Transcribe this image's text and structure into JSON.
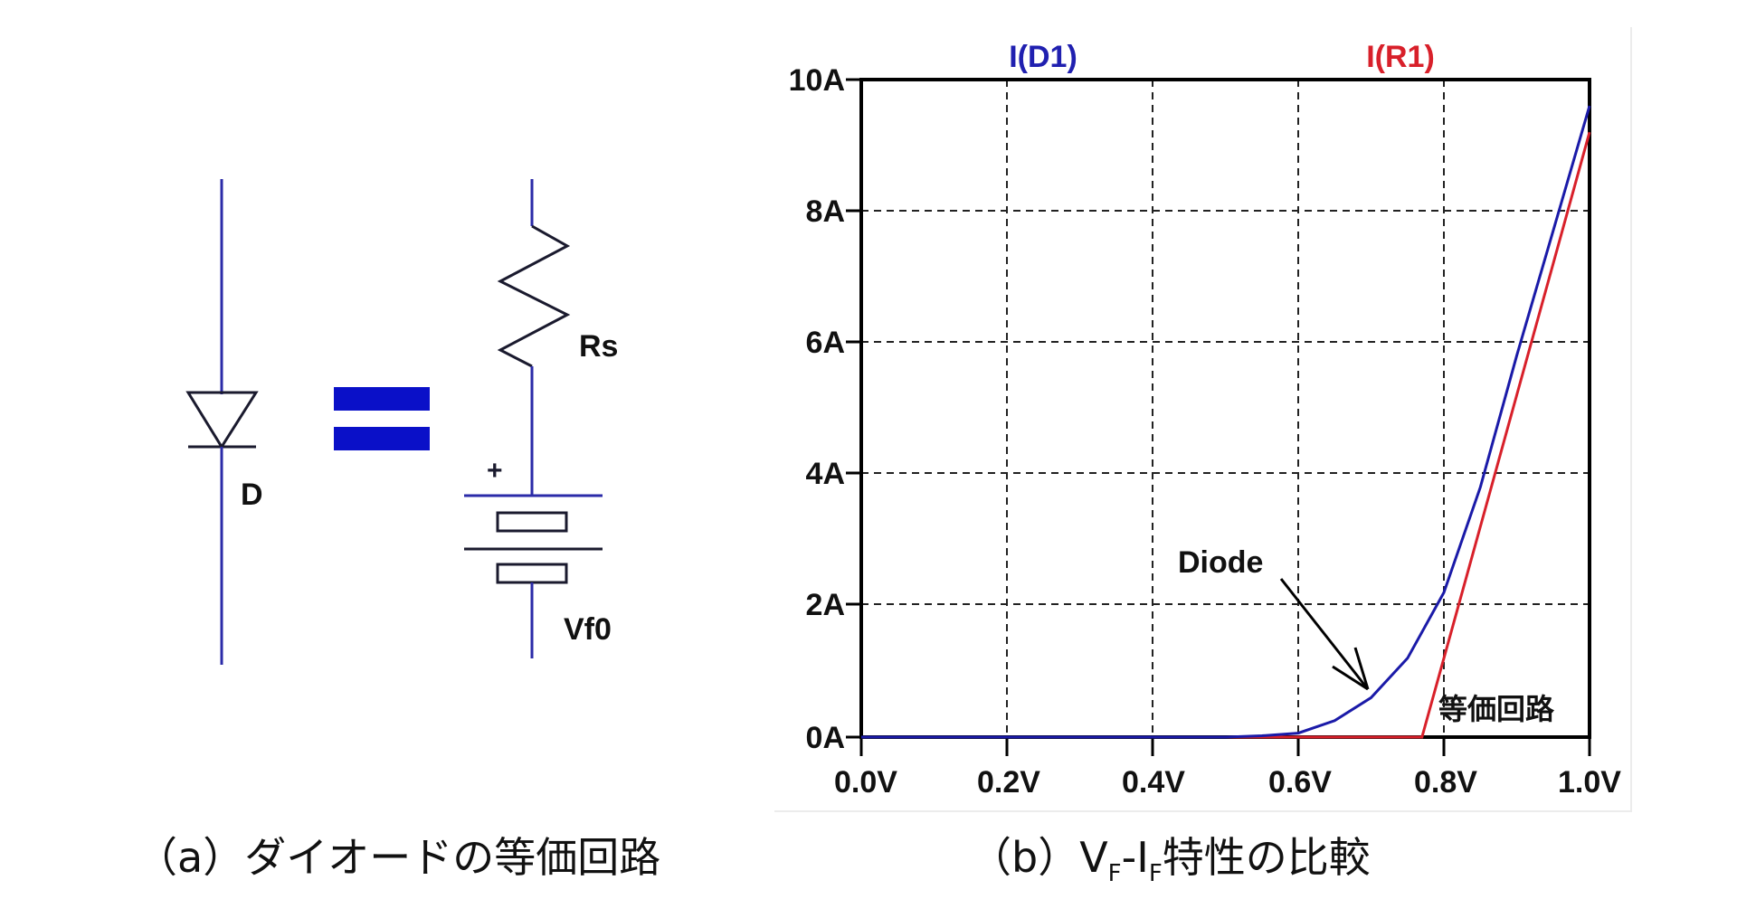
{
  "circuit": {
    "diode_label": "D",
    "equals_color": "#0a10c8",
    "resistor_label": "Rs",
    "battery_label": "Vf0",
    "battery_polarity": "+",
    "wire_color": "#2b2ba8",
    "symbol_color": "#1a1a2e"
  },
  "captions": {
    "a": "（a）ダイオードの等価回路",
    "b_prefix": "（b）",
    "b_v": "V",
    "b_v_sub": "F",
    "b_dash": "-",
    "b_i": "I",
    "b_i_sub": "F",
    "b_suffix": "特性の比較"
  },
  "chart": {
    "legend": {
      "d1": "I(D1)",
      "r1": "I(R1)"
    },
    "annotations": {
      "diode": "Diode",
      "equivalent": "等価回路"
    },
    "y_ticks": [
      "10A",
      "8A",
      "6A",
      "4A",
      "2A",
      "0A"
    ],
    "x_ticks": [
      "0.0V",
      "0.2V",
      "0.4V",
      "0.6V",
      "0.8V",
      "1.0V"
    ]
  },
  "chart_data": {
    "type": "line",
    "title": "",
    "xlabel": "",
    "ylabel": "",
    "xlim": [
      0.0,
      1.0
    ],
    "ylim": [
      0,
      10
    ],
    "grid": true,
    "legend_position": "top",
    "x_ticks": [
      "0.0V",
      "0.2V",
      "0.4V",
      "0.6V",
      "0.8V",
      "1.0V"
    ],
    "y_ticks": [
      "0A",
      "2A",
      "4A",
      "6A",
      "8A",
      "10A"
    ],
    "series": [
      {
        "name": "I(D1)",
        "color": "#1a1aa8",
        "annotation": "Diode",
        "x": [
          0.0,
          0.2,
          0.4,
          0.5,
          0.55,
          0.6,
          0.65,
          0.7,
          0.75,
          0.8,
          0.85,
          0.9,
          0.95,
          1.0
        ],
        "y": [
          0.0,
          0.0,
          0.0,
          0.0,
          0.02,
          0.06,
          0.25,
          0.6,
          1.2,
          2.2,
          3.8,
          5.8,
          7.7,
          9.6
        ]
      },
      {
        "name": "I(R1)",
        "color": "#d8202a",
        "annotation": "等価回路",
        "x": [
          0.0,
          0.2,
          0.4,
          0.6,
          0.77,
          0.8,
          0.85,
          0.9,
          0.95,
          1.0
        ],
        "y": [
          0.0,
          0.0,
          0.0,
          0.0,
          0.0,
          1.2,
          3.2,
          5.2,
          7.2,
          9.2
        ]
      }
    ]
  }
}
